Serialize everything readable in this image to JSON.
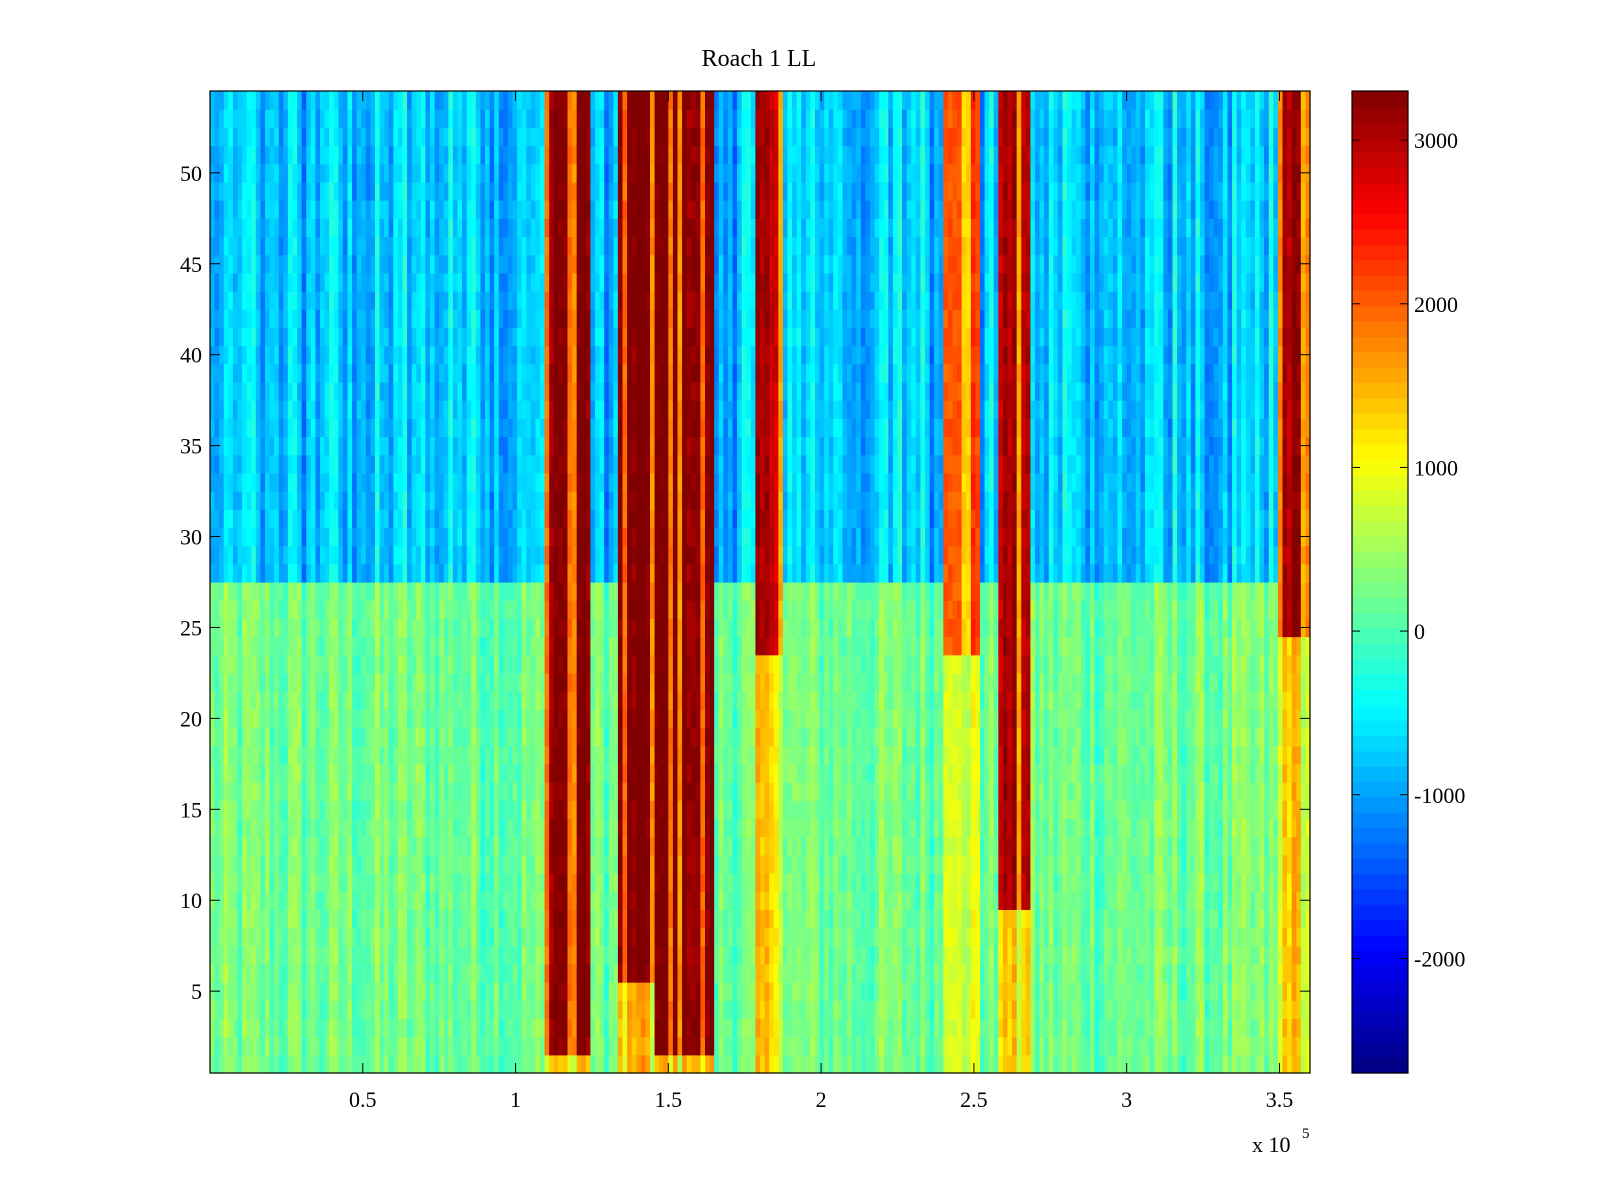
{
  "chart_data": {
    "type": "heatmap",
    "title": "Roach 1 LL",
    "xlabel": "",
    "ylabel": "",
    "x_multiplier_label": {
      "base": "x 10",
      "exponent": "5"
    },
    "xlim": [
      0,
      3.6
    ],
    "ylim": [
      0.5,
      54.5
    ],
    "x_ticks": [
      0.5,
      1,
      1.5,
      2,
      2.5,
      3,
      3.5
    ],
    "x_tick_labels": [
      "0.5",
      "1",
      "1.5",
      "2",
      "2.5",
      "3",
      "3.5"
    ],
    "y_ticks": [
      5,
      10,
      15,
      20,
      25,
      30,
      35,
      40,
      45,
      50
    ],
    "y_tick_labels": [
      "5",
      "10",
      "15",
      "20",
      "25",
      "30",
      "35",
      "40",
      "45",
      "50"
    ],
    "colormap": "jet",
    "clim": [
      -2700,
      3300
    ],
    "colorbar_ticks": [
      -2000,
      -1000,
      0,
      1000,
      2000,
      3000
    ],
    "colorbar_tick_labels": [
      "-2000",
      "-1000",
      "0",
      "1000",
      "2000",
      "3000"
    ],
    "rows": 54,
    "high_value_bands": [
      {
        "x_range": [
          1.1,
          1.25
        ],
        "peak_value": 3300,
        "rows_from": 2
      },
      {
        "x_range": [
          1.33,
          1.45
        ],
        "peak_value": 3300,
        "rows_from": 6
      },
      {
        "x_range": [
          1.45,
          1.65
        ],
        "peak_value": 3300,
        "rows_from": 2
      },
      {
        "x_range": [
          1.78,
          1.88
        ],
        "peak_value": 3000,
        "rows_from": 24
      },
      {
        "x_range": [
          2.4,
          2.52
        ],
        "peak_value": 2200,
        "rows_from": 24
      },
      {
        "x_range": [
          2.58,
          2.68
        ],
        "peak_value": 3000,
        "rows_from": 10
      },
      {
        "x_range": [
          3.49,
          3.6
        ],
        "peak_value": 3100,
        "rows_from": 25
      }
    ],
    "low_value_region": {
      "rows": [
        28,
        54
      ],
      "value": -1300
    },
    "baseline_value": 200,
    "grid": false,
    "legend": "colorbar-right"
  }
}
